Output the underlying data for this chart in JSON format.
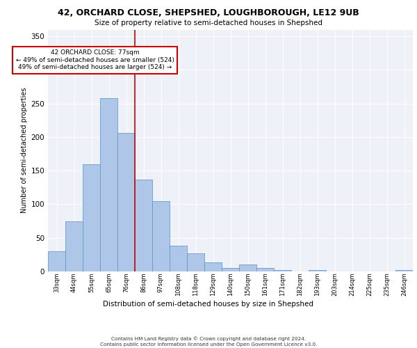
{
  "title_line1": "42, ORCHARD CLOSE, SHEPSHED, LOUGHBOROUGH, LE12 9UB",
  "title_line2": "Size of property relative to semi-detached houses in Shepshed",
  "xlabel": "Distribution of semi-detached houses by size in Shepshed",
  "ylabel": "Number of semi-detached properties",
  "categories": [
    "33sqm",
    "44sqm",
    "55sqm",
    "65sqm",
    "76sqm",
    "86sqm",
    "97sqm",
    "108sqm",
    "118sqm",
    "129sqm",
    "140sqm",
    "150sqm",
    "161sqm",
    "171sqm",
    "182sqm",
    "193sqm",
    "203sqm",
    "214sqm",
    "225sqm",
    "235sqm",
    "246sqm"
  ],
  "values": [
    30,
    75,
    160,
    258,
    206,
    137,
    105,
    38,
    27,
    13,
    5,
    10,
    5,
    2,
    0,
    2,
    0,
    0,
    0,
    0,
    2
  ],
  "bar_color": "#aec6e8",
  "bar_edge_color": "#5a8fc0",
  "annotation_text_line1": "42 ORCHARD CLOSE: 77sqm",
  "annotation_text_line2": "← 49% of semi-detached houses are smaller (524)",
  "annotation_text_line3": "49% of semi-detached houses are larger (524) →",
  "ylim": [
    0,
    360
  ],
  "yticks": [
    0,
    50,
    100,
    150,
    200,
    250,
    300,
    350
  ],
  "footer_line1": "Contains HM Land Registry data © Crown copyright and database right 2024.",
  "footer_line2": "Contains public sector information licensed under the Open Government Licence v3.0.",
  "bg_color": "#eef2f8",
  "grid_color": "#ffffff",
  "annotation_box_color": "#ffffff",
  "annotation_box_edge": "#cc0000",
  "vline_color": "#cc0000",
  "vline_index": 4.5
}
